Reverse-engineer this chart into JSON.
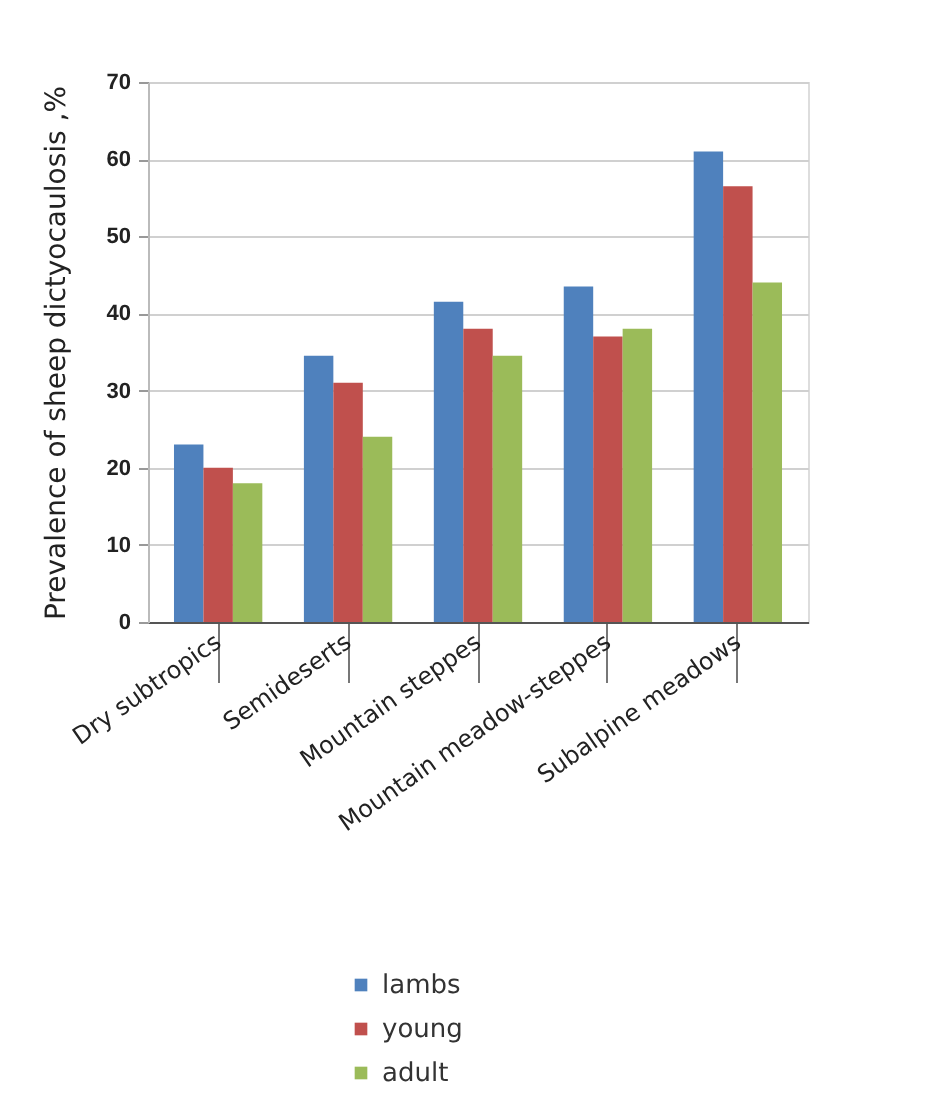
{
  "chart_data": {
    "type": "bar",
    "ylabel": "Prevalence of sheep dictyocaulosis ,%",
    "categories": [
      "Dry subtropics",
      "Semideserts",
      "Mountain steppes",
      "Mountain meadow-steppes",
      "Subalpine meadows"
    ],
    "series": [
      {
        "name": "lambs",
        "color": "#4f81bd",
        "values": [
          23,
          34.5,
          41.5,
          43.5,
          61
        ]
      },
      {
        "name": "young",
        "color": "#c0504d",
        "values": [
          20,
          31,
          38,
          37,
          56.5
        ]
      },
      {
        "name": "adult",
        "color": "#9bbb59",
        "values": [
          18,
          24,
          34.5,
          38,
          44
        ]
      }
    ],
    "ylim": [
      0,
      70
    ],
    "yticks": [
      0,
      10,
      20,
      30,
      40,
      50,
      60,
      70
    ],
    "grid": "y",
    "legend": "bottom"
  }
}
